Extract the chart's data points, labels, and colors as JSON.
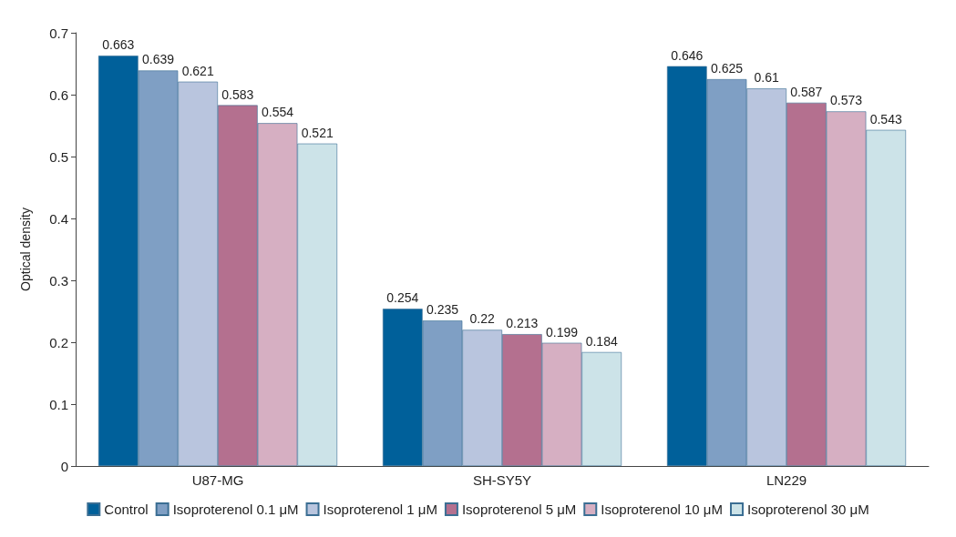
{
  "chart_data": {
    "type": "bar",
    "ylabel": "Optical density",
    "categories": [
      "U87-MG",
      "SH-SY5Y",
      "LN229"
    ],
    "series": [
      {
        "name": "Control",
        "color": "#00609a",
        "values": [
          0.663,
          0.254,
          0.646
        ]
      },
      {
        "name": "Isoproterenol 0.1 μM",
        "color": "#7f9fc4",
        "values": [
          0.639,
          0.235,
          0.625
        ]
      },
      {
        "name": "Isoproterenol 1 μM",
        "color": "#b9c5de",
        "values": [
          0.621,
          0.22,
          0.61
        ]
      },
      {
        "name": "Isoproterenol 5 μM",
        "color": "#b4708f",
        "values": [
          0.583,
          0.213,
          0.587
        ]
      },
      {
        "name": "Isoproterenol 10 μM",
        "color": "#d6afc2",
        "values": [
          0.554,
          0.199,
          0.573
        ]
      },
      {
        "name": "Isoproterenol 30 μM",
        "color": "#cce3e8",
        "values": [
          0.521,
          0.184,
          0.543
        ]
      }
    ],
    "ylim": [
      0,
      0.7
    ],
    "yticks": [
      0,
      0.1,
      0.2,
      0.3,
      0.4,
      0.5,
      0.6,
      0.7
    ],
    "grid": false,
    "legend": "bottom",
    "data_labels": true
  }
}
